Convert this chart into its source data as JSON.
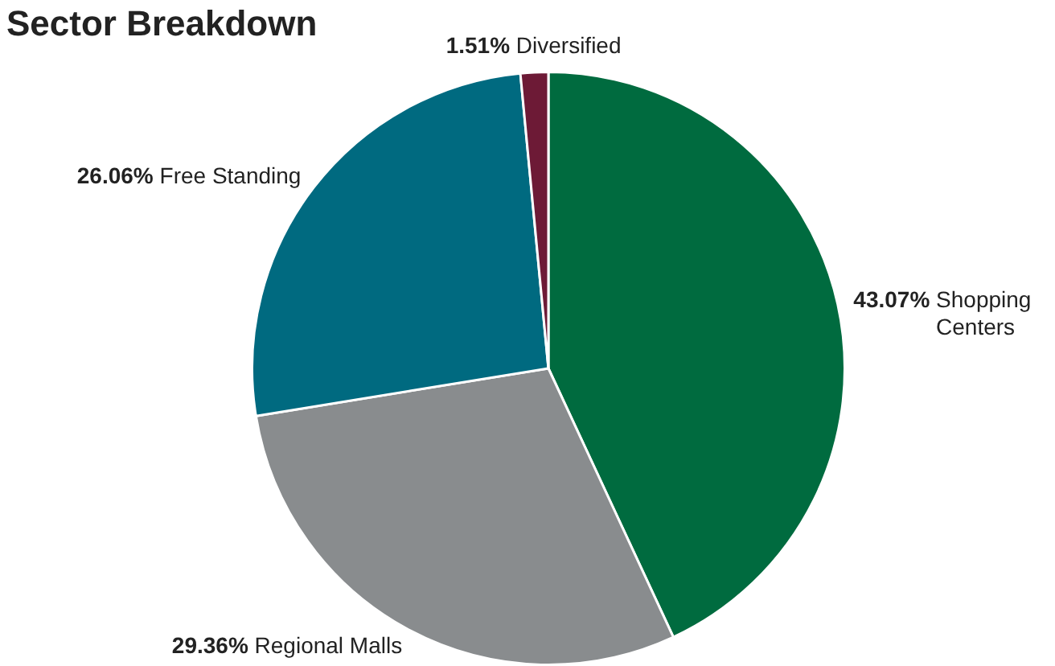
{
  "chart_data": {
    "type": "pie",
    "title": "Sector Breakdown",
    "categories": [
      "Shopping Centers",
      "Regional Malls",
      "Free Standing",
      "Diversified"
    ],
    "values": [
      43.07,
      29.36,
      26.06,
      1.51
    ],
    "value_labels": [
      "43.07%",
      "29.36%",
      "26.06%",
      "1.51%"
    ],
    "colors": [
      "#006b3f",
      "#898c8e",
      "#006a80",
      "#6d1a36"
    ],
    "legend": false
  }
}
